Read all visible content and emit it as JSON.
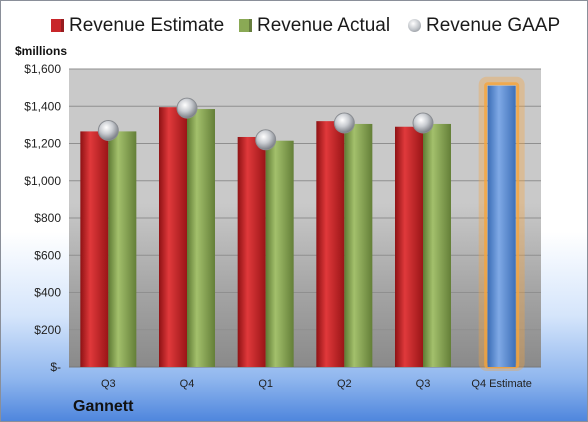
{
  "company": "Gannett",
  "units_label": "$millions",
  "legend": [
    {
      "label": "Revenue Estimate",
      "color": "#c8262a",
      "shape": "square"
    },
    {
      "label": "Revenue Actual",
      "color": "#8aa955",
      "shape": "square"
    },
    {
      "label": "Revenue GAAP",
      "color": "#bfc3c8",
      "shape": "circle"
    }
  ],
  "colors": {
    "estimate": "#c8262a",
    "actual": "#8aa955",
    "forecast": "#5a8fd6",
    "forecast_glow": "#f5a43c",
    "gaap": "#c3c6cb"
  },
  "chart_data": {
    "type": "bar",
    "categories": [
      "Q3",
      "Q4",
      "Q1",
      "Q2",
      "Q3",
      "Q4 Estimate"
    ],
    "series": [
      {
        "name": "Revenue Estimate",
        "values": [
          1265,
          1395,
          1235,
          1320,
          1290,
          null
        ]
      },
      {
        "name": "Revenue Actual",
        "values": [
          1265,
          1385,
          1215,
          1305,
          1305,
          null
        ]
      },
      {
        "name": "Revenue GAAP",
        "values": [
          1270,
          1390,
          1220,
          1310,
          1310,
          null
        ]
      }
    ],
    "forecast": {
      "category": "Q4 Estimate",
      "value": 1510
    },
    "yticks": [
      "$-",
      "$200",
      "$400",
      "$600",
      "$800",
      "$1,000",
      "$1,200",
      "$1,400",
      "$1,600"
    ],
    "ylim": [
      0,
      1600
    ],
    "grid": true,
    "legend_position": "top"
  }
}
